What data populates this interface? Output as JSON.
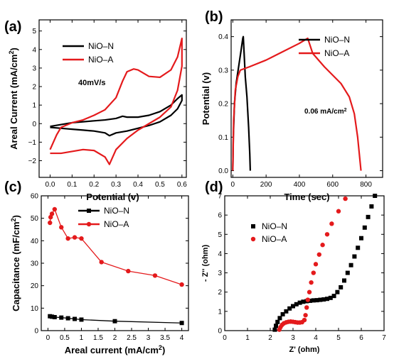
{
  "panels": [
    {
      "id": "a",
      "letter": "(a)",
      "type": "line",
      "xlabel": "Potential (v)",
      "ylabel": "Areal Current (mA/cm²)",
      "annotation": "40mV/s",
      "xlim": [
        -0.05,
        0.62
      ],
      "ylim": [
        -2.9,
        5.6
      ],
      "xticks": [
        0.0,
        0.1,
        0.2,
        0.3,
        0.4,
        0.5,
        0.6
      ],
      "xtick_labels": [
        "0.0",
        "0.1",
        "0.2",
        "0.3",
        "0.4",
        "0.5",
        "0.6"
      ],
      "yticks": [
        -2,
        -1,
        0,
        1,
        2,
        3,
        4,
        5
      ],
      "ytick_labels": [
        "−2",
        "−1",
        "0",
        "1",
        "2",
        "3",
        "4",
        "5"
      ],
      "legend_position": "upper-left",
      "series": [
        {
          "name": "NiO–N",
          "color": "#000000",
          "marker": "none",
          "x": [
            0.0,
            0.05,
            0.1,
            0.15,
            0.2,
            0.25,
            0.3,
            0.33,
            0.35,
            0.4,
            0.45,
            0.5,
            0.55,
            0.58,
            0.6,
            0.6,
            0.58,
            0.55,
            0.5,
            0.45,
            0.4,
            0.35,
            0.3,
            0.27,
            0.25,
            0.2,
            0.15,
            0.1,
            0.05,
            0.0
          ],
          "y": [
            -0.15,
            -0.05,
            0.05,
            0.1,
            0.15,
            0.2,
            0.28,
            0.4,
            0.35,
            0.35,
            0.45,
            0.65,
            1.0,
            1.35,
            1.55,
            1.25,
            0.8,
            0.45,
            0.1,
            -0.1,
            -0.25,
            -0.4,
            -0.5,
            -0.65,
            -0.5,
            -0.4,
            -0.35,
            -0.3,
            -0.25,
            -0.2
          ]
        },
        {
          "name": "NiO–A",
          "color": "#e41a1c",
          "marker": "none",
          "x": [
            0.0,
            0.03,
            0.05,
            0.1,
            0.15,
            0.2,
            0.25,
            0.3,
            0.33,
            0.35,
            0.38,
            0.4,
            0.45,
            0.5,
            0.55,
            0.58,
            0.6,
            0.6,
            0.58,
            0.55,
            0.5,
            0.45,
            0.4,
            0.35,
            0.3,
            0.27,
            0.25,
            0.2,
            0.15,
            0.1,
            0.05,
            0.0
          ],
          "y": [
            -1.4,
            -0.6,
            -0.2,
            0.05,
            0.2,
            0.45,
            0.75,
            1.4,
            2.3,
            2.8,
            2.95,
            2.9,
            2.55,
            2.5,
            2.9,
            3.6,
            4.6,
            3.1,
            1.8,
            0.9,
            0.35,
            0.0,
            -0.35,
            -0.8,
            -1.4,
            -2.2,
            -1.8,
            -1.45,
            -1.4,
            -1.5,
            -1.6,
            -1.6
          ]
        }
      ]
    },
    {
      "id": "b",
      "letter": "(b)",
      "type": "line",
      "xlabel": "Time (sec)",
      "ylabel": "Potential (v)",
      "annotation": "0.06 mA/cm²",
      "xlim": [
        -10,
        900
      ],
      "ylim": [
        -0.02,
        0.45
      ],
      "xticks": [
        0,
        200,
        400,
        600,
        800
      ],
      "xtick_labels": [
        "0",
        "200",
        "400",
        "600",
        "800"
      ],
      "yticks": [
        0.0,
        0.1,
        0.2,
        0.3,
        0.4
      ],
      "ytick_labels": [
        "0.0",
        "0.1",
        "0.2",
        "0.3",
        "0.4"
      ],
      "legend_position": "upper-right",
      "series": [
        {
          "name": "NiO–N",
          "color": "#000000",
          "marker": "none",
          "x": [
            0,
            3,
            10,
            20,
            35,
            50,
            60,
            63,
            68,
            75,
            85,
            95,
            102,
            105
          ],
          "y": [
            0.0,
            0.1,
            0.2,
            0.26,
            0.31,
            0.36,
            0.395,
            0.4,
            0.35,
            0.28,
            0.22,
            0.13,
            0.05,
            0.0
          ]
        },
        {
          "name": "NiO–A",
          "color": "#e41a1c",
          "marker": "none",
          "x": [
            0,
            5,
            15,
            30,
            45,
            100,
            200,
            300,
            400,
            450,
            460,
            480,
            550,
            650,
            700,
            730,
            750,
            760,
            770
          ],
          "y": [
            0.0,
            0.15,
            0.24,
            0.28,
            0.3,
            0.31,
            0.33,
            0.355,
            0.38,
            0.395,
            0.38,
            0.35,
            0.31,
            0.26,
            0.22,
            0.17,
            0.1,
            0.05,
            0.0
          ]
        }
      ]
    },
    {
      "id": "c",
      "letter": "(c)",
      "type": "line",
      "xlabel": "Areal current (mA/cm²)",
      "ylabel": "Capacitance (mF/cm²)",
      "annotation": "",
      "xlim": [
        -0.2,
        4.2
      ],
      "ylim": [
        0,
        60
      ],
      "xticks": [
        0,
        0.5,
        1,
        1.5,
        2,
        2.5,
        3,
        3.5,
        4
      ],
      "xtick_labels": [
        "0",
        "0.5",
        "1",
        "1.5",
        "2",
        "2.5",
        "3",
        "3.5",
        "4"
      ],
      "yticks": [
        0,
        10,
        20,
        30,
        40,
        50,
        60
      ],
      "ytick_labels": [
        "0",
        "10",
        "20",
        "30",
        "40",
        "50",
        "60"
      ],
      "legend_position": "upper-right",
      "series": [
        {
          "name": "NiO–N",
          "color": "#000000",
          "marker": "square",
          "x": [
            0.06,
            0.12,
            0.2,
            0.4,
            0.6,
            0.8,
            1.0,
            2.0,
            4.0
          ],
          "y": [
            6.4,
            6.2,
            6.0,
            5.8,
            5.5,
            5.2,
            4.9,
            4.2,
            3.4
          ]
        },
        {
          "name": "NiO–A",
          "color": "#e41a1c",
          "marker": "circle",
          "x": [
            0.06,
            0.08,
            0.12,
            0.2,
            0.4,
            0.6,
            0.8,
            1.0,
            1.6,
            2.4,
            3.2,
            4.0
          ],
          "y": [
            48,
            50.5,
            52,
            54,
            46,
            41,
            41.5,
            41,
            30.5,
            26.5,
            24.5,
            20.5
          ]
        }
      ]
    },
    {
      "id": "d",
      "letter": "(d)",
      "type": "scatter",
      "xlabel": "Z' (ohm)",
      "ylabel": "- Z'' (ohm)",
      "annotation": "",
      "xlim": [
        0,
        7
      ],
      "ylim": [
        0,
        7
      ],
      "xticks": [
        0,
        1,
        2,
        3,
        4,
        5,
        6,
        7
      ],
      "xtick_labels": [
        "0",
        "1",
        "2",
        "3",
        "4",
        "5",
        "6",
        "7"
      ],
      "yticks": [
        0,
        1,
        2,
        3,
        4,
        5,
        6,
        7
      ],
      "ytick_labels": [
        "0",
        "1",
        "2",
        "3",
        "4",
        "5",
        "6",
        "7"
      ],
      "legend_position": "center-left",
      "series": [
        {
          "name": "NiO–N",
          "color": "#000000",
          "marker": "square",
          "x": [
            2.2,
            2.25,
            2.32,
            2.42,
            2.55,
            2.7,
            2.85,
            3.0,
            3.15,
            3.3,
            3.45,
            3.6,
            3.75,
            3.9,
            4.05,
            4.2,
            4.35,
            4.5,
            4.65,
            4.8,
            4.95,
            5.1,
            5.25,
            5.4,
            5.55,
            5.7,
            5.85,
            6.0,
            6.15,
            6.3,
            6.45,
            6.6
          ],
          "y": [
            0.05,
            0.25,
            0.45,
            0.65,
            0.85,
            1.0,
            1.15,
            1.27,
            1.37,
            1.45,
            1.5,
            1.53,
            1.55,
            1.57,
            1.58,
            1.6,
            1.62,
            1.65,
            1.7,
            1.8,
            2.0,
            2.25,
            2.6,
            3.0,
            3.4,
            3.85,
            4.3,
            4.8,
            5.35,
            5.9,
            6.45,
            7.0
          ]
        },
        {
          "name": "NiO–A",
          "color": "#e41a1c",
          "marker": "circle",
          "x": [
            2.4,
            2.45,
            2.52,
            2.6,
            2.7,
            2.8,
            2.9,
            3.0,
            3.1,
            3.2,
            3.3,
            3.4,
            3.5,
            3.55,
            3.6,
            3.65,
            3.72,
            3.8,
            3.9,
            4.0,
            4.15,
            4.3,
            4.5,
            4.7,
            5.0,
            5.3
          ],
          "y": [
            0.05,
            0.18,
            0.3,
            0.38,
            0.43,
            0.46,
            0.47,
            0.46,
            0.44,
            0.42,
            0.42,
            0.44,
            0.55,
            0.8,
            1.2,
            1.6,
            2.0,
            2.5,
            3.0,
            3.45,
            3.95,
            4.45,
            5.0,
            5.55,
            6.2,
            6.85
          ]
        }
      ]
    }
  ]
}
